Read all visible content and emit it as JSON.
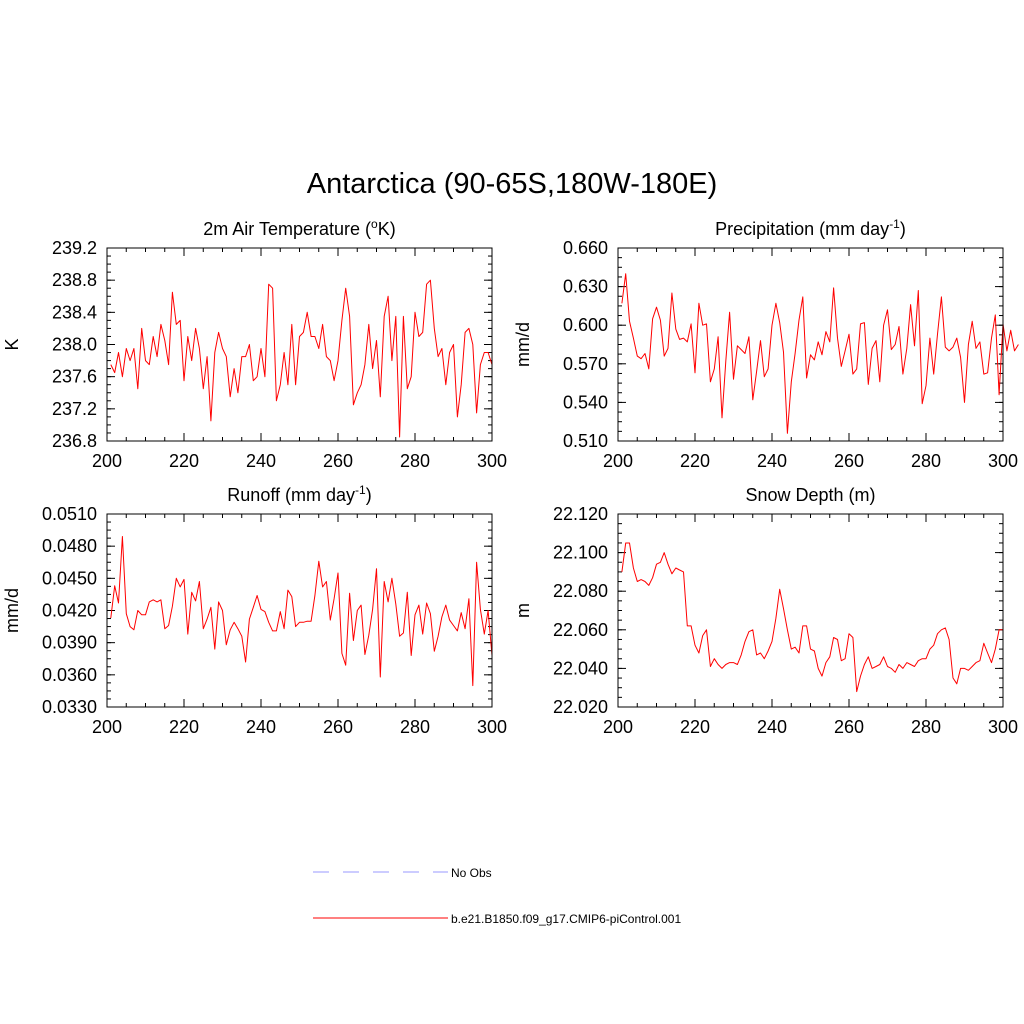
{
  "title": "Antarctica (90-65S,180W-180E)",
  "colors": {
    "model": "#ff0000",
    "obs": "#9999ff",
    "axis": "#000000"
  },
  "legend": {
    "items": [
      {
        "label": "No Obs",
        "style": "dashed",
        "color": "#9999ff"
      },
      {
        "label": "b.e21.B1850.f09_g17.CMIP6-piControl.001",
        "style": "solid",
        "color": "#ff0000"
      }
    ]
  },
  "chart_data": [
    {
      "type": "line",
      "title": "2m Air Temperature (",
      "title_sup": "o",
      "title_tail": "K)",
      "ylabel": "K",
      "xlim": [
        200,
        300
      ],
      "ylim": [
        236.8,
        239.2
      ],
      "xticks": [
        200,
        220,
        240,
        260,
        280,
        300
      ],
      "xtick_labels": [
        "200",
        "220",
        "240",
        "260",
        "280",
        "300"
      ],
      "yticks": [
        236.8,
        237.2,
        237.6,
        238.0,
        238.4,
        238.8,
        239.2
      ],
      "ytick_labels": [
        "236.8",
        "237.2",
        "237.6",
        "238.0",
        "238.4",
        "238.8",
        "239.2"
      ],
      "x_start": 201,
      "series": [
        {
          "name": "b.e21.B1850.f09_g17.CMIP6-piControl.001",
          "color": "#ff0000",
          "values": [
            237.75,
            237.65,
            237.9,
            237.6,
            237.95,
            237.8,
            237.95,
            237.45,
            238.2,
            237.8,
            237.75,
            238.1,
            237.85,
            238.25,
            238.05,
            237.75,
            238.65,
            238.25,
            238.3,
            237.55,
            238.1,
            237.8,
            238.2,
            237.95,
            237.45,
            237.85,
            237.05,
            237.9,
            238.15,
            237.95,
            237.85,
            237.35,
            237.7,
            237.4,
            237.85,
            237.85,
            238.0,
            237.55,
            237.6,
            237.95,
            237.6,
            238.75,
            238.7,
            237.3,
            237.5,
            237.9,
            237.5,
            238.25,
            237.5,
            238.1,
            238.15,
            238.4,
            238.1,
            238.1,
            237.95,
            238.25,
            237.85,
            237.8,
            237.55,
            237.8,
            238.3,
            238.7,
            238.35,
            237.25,
            237.4,
            237.5,
            237.75,
            238.25,
            237.7,
            238.05,
            237.35,
            238.35,
            238.6,
            237.8,
            238.35,
            236.85,
            238.35,
            237.45,
            237.6,
            238.4,
            238.1,
            238.15,
            238.75,
            238.8,
            238.2,
            237.85,
            237.95,
            237.5,
            237.9,
            238.0,
            237.1,
            237.5,
            238.15,
            238.2,
            238.0,
            237.15,
            237.75,
            237.9,
            237.9,
            237.75
          ]
        }
      ]
    },
    {
      "type": "line",
      "title": "Precipitation (mm day",
      "title_sup": "-1",
      "title_tail": ")",
      "ylabel": "mm/d",
      "xlim": [
        200,
        300
      ],
      "ylim": [
        0.51,
        0.66
      ],
      "xticks": [
        200,
        220,
        240,
        260,
        280,
        300
      ],
      "xtick_labels": [
        "200",
        "220",
        "240",
        "260",
        "280",
        "300"
      ],
      "yticks": [
        0.51,
        0.54,
        0.57,
        0.6,
        0.63,
        0.66
      ],
      "ytick_labels": [
        "0.510",
        "0.540",
        "0.570",
        "0.600",
        "0.630",
        "0.660"
      ],
      "x_start": 201,
      "series": [
        {
          "name": "b.e21.B1850.f09_g17.CMIP6-piControl.001",
          "color": "#ff0000",
          "values": [
            0.617,
            0.64,
            0.603,
            0.59,
            0.576,
            0.574,
            0.578,
            0.566,
            0.605,
            0.614,
            0.604,
            0.576,
            0.582,
            0.625,
            0.597,
            0.589,
            0.59,
            0.587,
            0.601,
            0.563,
            0.617,
            0.6,
            0.601,
            0.556,
            0.566,
            0.591,
            0.528,
            0.572,
            0.61,
            0.558,
            0.584,
            0.581,
            0.578,
            0.591,
            0.542,
            0.564,
            0.588,
            0.56,
            0.566,
            0.6,
            0.617,
            0.602,
            0.579,
            0.516,
            0.556,
            0.578,
            0.604,
            0.622,
            0.559,
            0.577,
            0.573,
            0.587,
            0.577,
            0.595,
            0.587,
            0.629,
            0.59,
            0.568,
            0.58,
            0.593,
            0.562,
            0.566,
            0.601,
            0.602,
            0.554,
            0.582,
            0.588,
            0.556,
            0.6,
            0.612,
            0.581,
            0.585,
            0.599,
            0.562,
            0.582,
            0.616,
            0.584,
            0.627,
            0.539,
            0.553,
            0.59,
            0.562,
            0.593,
            0.622,
            0.583,
            0.58,
            0.583,
            0.59,
            0.575,
            0.54,
            0.585,
            0.603,
            0.582,
            0.587,
            0.562,
            0.563,
            0.59,
            0.608,
            0.546,
            0.601,
            0.58,
            0.596,
            0.58,
            0.585
          ]
        }
      ]
    },
    {
      "type": "line",
      "title": "Runoff (mm day",
      "title_sup": "-1",
      "title_tail": ")",
      "ylabel": "mm/d",
      "xlim": [
        200,
        300
      ],
      "ylim": [
        0.033,
        0.051
      ],
      "xticks": [
        200,
        220,
        240,
        260,
        280,
        300
      ],
      "xtick_labels": [
        "200",
        "220",
        "240",
        "260",
        "280",
        "300"
      ],
      "yticks": [
        0.033,
        0.036,
        0.039,
        0.042,
        0.045,
        0.048,
        0.051
      ],
      "ytick_labels": [
        "0.0330",
        "0.0360",
        "0.0390",
        "0.0420",
        "0.0450",
        "0.0480",
        "0.0510"
      ],
      "x_start": 201,
      "series": [
        {
          "name": "b.e21.B1850.f09_g17.CMIP6-piControl.001",
          "color": "#ff0000",
          "values": [
            0.0413,
            0.0443,
            0.0427,
            0.0489,
            0.0417,
            0.0405,
            0.0402,
            0.042,
            0.0416,
            0.0416,
            0.0428,
            0.043,
            0.0428,
            0.043,
            0.0403,
            0.0406,
            0.0424,
            0.045,
            0.0442,
            0.0449,
            0.0398,
            0.0437,
            0.0429,
            0.0447,
            0.0403,
            0.0412,
            0.0423,
            0.0384,
            0.0428,
            0.042,
            0.0388,
            0.0402,
            0.0409,
            0.0403,
            0.0396,
            0.0372,
            0.0412,
            0.0423,
            0.0434,
            0.0421,
            0.0419,
            0.0409,
            0.0401,
            0.0401,
            0.0419,
            0.0403,
            0.0439,
            0.0433,
            0.0405,
            0.0409,
            0.0409,
            0.041,
            0.041,
            0.0434,
            0.0466,
            0.0442,
            0.0447,
            0.0411,
            0.0431,
            0.0455,
            0.038,
            0.0369,
            0.0436,
            0.0392,
            0.042,
            0.0425,
            0.0379,
            0.0397,
            0.0421,
            0.0459,
            0.0358,
            0.0447,
            0.0428,
            0.045,
            0.0426,
            0.0396,
            0.0399,
            0.0437,
            0.0378,
            0.0416,
            0.0425,
            0.0398,
            0.0427,
            0.0417,
            0.0382,
            0.0396,
            0.0414,
            0.0425,
            0.0411,
            0.0406,
            0.0401,
            0.0418,
            0.0403,
            0.0431,
            0.035,
            0.0465,
            0.0421,
            0.0398,
            0.042,
            0.0378
          ]
        }
      ]
    },
    {
      "type": "line",
      "title": "Snow Depth (m)",
      "title_sup": "",
      "title_tail": "",
      "ylabel": "m",
      "xlim": [
        200,
        300
      ],
      "ylim": [
        22.02,
        22.12
      ],
      "xticks": [
        200,
        220,
        240,
        260,
        280,
        300
      ],
      "xtick_labels": [
        "200",
        "220",
        "240",
        "260",
        "280",
        "300"
      ],
      "yticks": [
        22.02,
        22.04,
        22.06,
        22.08,
        22.1,
        22.12
      ],
      "ytick_labels": [
        "22.020",
        "22.040",
        "22.060",
        "22.080",
        "22.100",
        "22.120"
      ],
      "x_start": 201,
      "series": [
        {
          "name": "b.e21.B1850.f09_g17.CMIP6-piControl.001",
          "color": "#ff0000",
          "values": [
            22.09,
            22.105,
            22.105,
            22.092,
            22.085,
            22.086,
            22.085,
            22.083,
            22.087,
            22.094,
            22.095,
            22.1,
            22.094,
            22.089,
            22.092,
            22.091,
            22.09,
            22.062,
            22.062,
            22.052,
            22.048,
            22.057,
            22.06,
            22.041,
            22.045,
            22.042,
            22.04,
            22.042,
            22.043,
            22.043,
            22.042,
            22.047,
            22.054,
            22.059,
            22.06,
            22.047,
            22.048,
            22.045,
            22.049,
            22.054,
            22.066,
            22.081,
            22.071,
            22.06,
            22.05,
            22.051,
            22.048,
            22.062,
            22.062,
            22.05,
            22.049,
            22.04,
            22.036,
            22.043,
            22.046,
            22.056,
            22.055,
            22.044,
            22.045,
            22.058,
            22.056,
            22.028,
            22.036,
            22.042,
            22.046,
            22.04,
            22.041,
            22.042,
            22.046,
            22.041,
            22.04,
            22.038,
            22.042,
            22.04,
            22.043,
            22.042,
            22.041,
            22.044,
            22.045,
            22.045,
            22.05,
            22.052,
            22.058,
            22.06,
            22.061,
            22.055,
            22.035,
            22.032,
            22.04,
            22.04,
            22.039,
            22.041,
            22.043,
            22.044,
            22.053,
            22.048,
            22.043,
            22.05,
            22.06,
            22.06
          ]
        }
      ]
    }
  ]
}
